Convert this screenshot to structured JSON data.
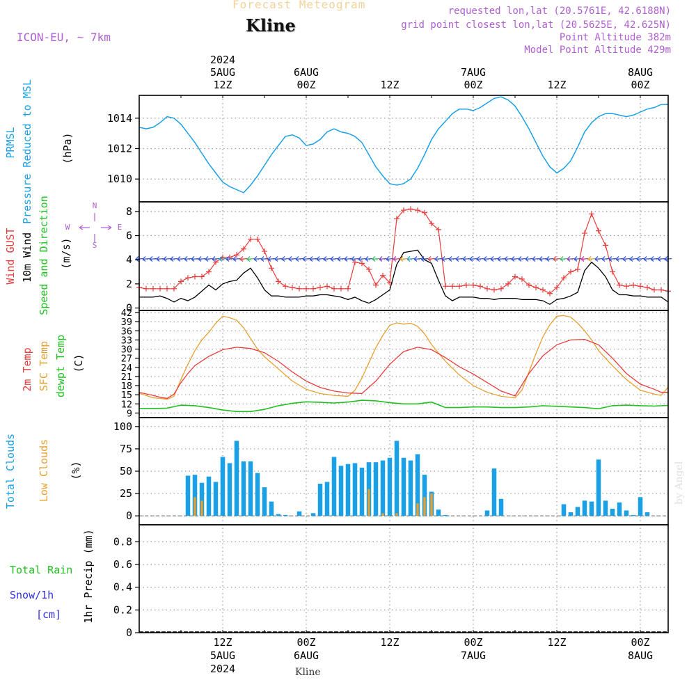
{
  "header": {
    "title": "Forecast Meteogram",
    "station": "Kline",
    "model": "ICON-EU, ~ 7km",
    "requested": "requested lon,lat (20.5761E, 42.6188N)",
    "gridpoint": "grid point closest lon,lat (20.5625E, 42.625N)",
    "point_alt": "Point Altitude 382m",
    "model_alt": "Model Point Altitude 429m",
    "signature": "by Angel",
    "footer_station": "Kline"
  },
  "colors": {
    "pressure": "#1aa0e6",
    "gust": "#e83c3c",
    "wind": "#000000",
    "temp2m": "#e83c3c",
    "sfc": "#e6a030",
    "dewpt": "#20c020",
    "clouds": "#1aa0e6",
    "lowclouds": "#e6a030",
    "rain": "#20c020",
    "snow": "#3030e0",
    "dir": "#b060d0"
  },
  "time_axis": {
    "top_year": "2024",
    "top_labels": [
      {
        "t": 12,
        "date": "5AUG",
        "hour": "12Z"
      },
      {
        "t": 24,
        "date": "6AUG",
        "hour": "00Z"
      },
      {
        "t": 36,
        "date": "",
        "hour": "12Z"
      },
      {
        "t": 48,
        "date": "7AUG",
        "hour": "00Z"
      },
      {
        "t": 60,
        "date": "",
        "hour": "12Z"
      },
      {
        "t": 72,
        "date": "8AUG",
        "hour": "00Z"
      }
    ],
    "bottom_labels": [
      {
        "t": 12,
        "hour": "12Z",
        "date": "5AUG",
        "year": "2024"
      },
      {
        "t": 24,
        "hour": "00Z",
        "date": "6AUG",
        "year": ""
      },
      {
        "t": 36,
        "hour": "12Z",
        "date": "",
        "year": ""
      },
      {
        "t": 48,
        "hour": "00Z",
        "date": "7AUG",
        "year": ""
      },
      {
        "t": 60,
        "hour": "12Z",
        "date": "",
        "year": ""
      },
      {
        "t": 72,
        "hour": "00Z",
        "date": "8AUG",
        "year": ""
      }
    ]
  },
  "panel_labels": {
    "pressure": {
      "short": "PRMSL",
      "long": "Pressure Reduced to MSL",
      "unit": "(hPa)"
    },
    "wind": {
      "gust": "Wind GUST",
      "wind10": "10m Wind",
      "speed": "Speed and Direction",
      "unit": "(m/s)",
      "compass_n": "N",
      "compass_s": "S",
      "compass_w": "W",
      "compass_e": "E"
    },
    "temp": {
      "t2m": "2m Temp",
      "sfc": "SFC Temp",
      "dew": "dewpt Temp",
      "unit": "(C)"
    },
    "clouds": {
      "total": "Total Clouds",
      "low": "Low Clouds",
      "unit": "(%)"
    },
    "precip": {
      "rain": "Total Rain",
      "snow": "Snow/1h",
      "cm": "[cm]",
      "axis": "1hr Precip (mm)"
    }
  },
  "chart_data": [
    {
      "type": "line",
      "ylabel": "Pressure Reduced to MSL",
      "ylim": [
        1008.5,
        1015.5
      ],
      "yticks": [
        1010,
        1012,
        1014
      ],
      "xlim": [
        0,
        76
      ],
      "series": [
        {
          "name": "PRMSL",
          "x": [
            0,
            1,
            2,
            3,
            4,
            5,
            6,
            7,
            8,
            9,
            10,
            11,
            12,
            13,
            14,
            15,
            16,
            17,
            18,
            19,
            20,
            21,
            22,
            23,
            24,
            25,
            26,
            27,
            28,
            29,
            30,
            31,
            32,
            33,
            34,
            35,
            36,
            37,
            38,
            39,
            40,
            41,
            42,
            43,
            44,
            45,
            46,
            47,
            48,
            49,
            50,
            51,
            52,
            53,
            54,
            55,
            56,
            57,
            58,
            59,
            60,
            61,
            62,
            63,
            64,
            65,
            66,
            67,
            68,
            69,
            70,
            71,
            72,
            73,
            74,
            75,
            76
          ],
          "values": [
            1013.4,
            1013.3,
            1013.4,
            1013.7,
            1014.1,
            1014.0,
            1013.6,
            1013.0,
            1012.4,
            1011.7,
            1011.0,
            1010.4,
            1009.8,
            1009.5,
            1009.3,
            1009.1,
            1009.6,
            1010.2,
            1010.9,
            1011.6,
            1012.2,
            1012.8,
            1012.9,
            1012.7,
            1012.2,
            1012.3,
            1012.6,
            1013.1,
            1013.3,
            1013.1,
            1013.0,
            1012.8,
            1012.4,
            1011.6,
            1010.8,
            1010.2,
            1009.7,
            1009.6,
            1009.7,
            1010.0,
            1010.7,
            1011.6,
            1012.6,
            1013.3,
            1013.8,
            1014.3,
            1014.6,
            1014.6,
            1014.5,
            1014.7,
            1015.0,
            1015.3,
            1015.4,
            1015.2,
            1014.8,
            1014.1,
            1013.3,
            1012.4,
            1011.5,
            1010.8,
            1010.4,
            1010.7,
            1011.2,
            1012.1,
            1013.1,
            1013.7,
            1014.1,
            1014.3,
            1014.3,
            1014.2,
            1014.1,
            1014.2,
            1014.4,
            1014.6,
            1014.7,
            1014.9,
            1014.9
          ]
        }
      ]
    },
    {
      "type": "line",
      "ylabel": "(m/s)",
      "ylim": [
        -0.2,
        8.8
      ],
      "yticks": [
        0,
        2,
        4,
        6,
        8
      ],
      "xlim": [
        0,
        76
      ],
      "series": [
        {
          "name": "Wind GUST",
          "x": [
            0,
            1,
            2,
            3,
            4,
            5,
            6,
            7,
            8,
            9,
            10,
            11,
            12,
            13,
            14,
            15,
            16,
            17,
            18,
            19,
            20,
            21,
            22,
            23,
            24,
            25,
            26,
            27,
            28,
            29,
            30,
            31,
            32,
            33,
            34,
            35,
            36,
            37,
            38,
            39,
            40,
            41,
            42,
            43,
            44,
            45,
            46,
            47,
            48,
            49,
            50,
            51,
            52,
            53,
            54,
            55,
            56,
            57,
            58,
            59,
            60,
            61,
            62,
            63,
            64,
            65,
            66,
            67,
            68,
            69,
            70,
            71,
            72,
            73,
            74,
            75,
            76
          ],
          "values": [
            1.7,
            1.6,
            1.6,
            1.6,
            1.6,
            1.6,
            2.2,
            2.5,
            2.6,
            2.6,
            3.0,
            3.8,
            4.2,
            4.2,
            4.4,
            4.9,
            5.7,
            5.7,
            4.7,
            3.3,
            2.2,
            1.8,
            1.7,
            1.6,
            1.6,
            1.6,
            1.7,
            1.8,
            1.6,
            1.6,
            1.6,
            3.8,
            3.7,
            3.2,
            1.9,
            2.7,
            2.1,
            7.4,
            8.1,
            8.2,
            8.1,
            7.9,
            7.0,
            6.5,
            1.8,
            1.8,
            1.8,
            1.9,
            1.9,
            1.8,
            1.6,
            1.5,
            1.6,
            2.0,
            2.6,
            2.4,
            1.9,
            1.7,
            1.5,
            1.2,
            1.7,
            2.5,
            3.0,
            3.2,
            6.2,
            7.8,
            6.4,
            5.2,
            3.0,
            1.9,
            1.8,
            1.9,
            1.8,
            1.7,
            1.5,
            1.5,
            1.4
          ]
        },
        {
          "name": "10m Wind",
          "x": [
            0,
            1,
            2,
            3,
            4,
            5,
            6,
            7,
            8,
            9,
            10,
            11,
            12,
            13,
            14,
            15,
            16,
            17,
            18,
            19,
            20,
            21,
            22,
            23,
            24,
            25,
            26,
            27,
            28,
            29,
            30,
            31,
            32,
            33,
            34,
            35,
            36,
            37,
            38,
            39,
            40,
            41,
            42,
            43,
            44,
            45,
            46,
            47,
            48,
            49,
            50,
            51,
            52,
            53,
            54,
            55,
            56,
            57,
            58,
            59,
            60,
            61,
            62,
            63,
            64,
            65,
            66,
            67,
            68,
            69,
            70,
            71,
            72,
            73,
            74,
            75,
            76
          ],
          "values": [
            0.9,
            0.9,
            0.9,
            1.0,
            0.8,
            0.5,
            0.8,
            0.6,
            0.9,
            1.4,
            1.9,
            1.5,
            2.0,
            2.2,
            2.3,
            2.9,
            3.3,
            2.5,
            1.5,
            1.0,
            1.0,
            0.9,
            0.9,
            0.9,
            1.0,
            1.0,
            1.1,
            1.1,
            1.0,
            0.9,
            0.7,
            0.9,
            0.6,
            0.4,
            0.7,
            1.1,
            1.5,
            3.6,
            4.6,
            4.7,
            4.8,
            4.0,
            3.7,
            2.3,
            1.0,
            0.6,
            0.9,
            0.9,
            0.9,
            0.8,
            0.8,
            0.7,
            0.8,
            0.8,
            0.8,
            0.7,
            0.7,
            0.7,
            0.6,
            0.3,
            0.7,
            0.8,
            1.0,
            1.3,
            3.1,
            3.8,
            3.3,
            2.6,
            1.5,
            1.1,
            1.1,
            1.0,
            1.0,
            0.9,
            0.9,
            0.9,
            0.5
          ]
        }
      ]
    },
    {
      "type": "line",
      "ylabel": "(C)",
      "ylim": [
        7.5,
        42.7
      ],
      "yticks": [
        9,
        12,
        15,
        18,
        21,
        24,
        27,
        30,
        33,
        36,
        39,
        42
      ],
      "xlim": [
        0,
        76
      ],
      "series": [
        {
          "name": "2m Temp",
          "x": [
            0,
            2,
            3,
            4,
            5,
            6,
            7,
            8,
            10,
            12,
            14,
            16,
            18,
            20,
            22,
            24,
            26,
            28,
            30,
            32,
            34,
            36,
            38,
            40,
            42,
            44,
            46,
            48,
            50,
            52,
            54,
            56,
            58,
            60,
            62,
            64,
            66,
            68,
            70,
            72,
            74,
            75,
            76
          ],
          "values": [
            15.8,
            14.8,
            14.2,
            13.8,
            15.2,
            19.0,
            22.0,
            24.6,
            27.6,
            29.8,
            30.6,
            30.2,
            28.8,
            26.0,
            22.5,
            19.5,
            17.4,
            16.2,
            15.6,
            15.4,
            19.5,
            25.0,
            29.2,
            30.6,
            29.8,
            27.2,
            24.2,
            21.8,
            19.0,
            16.2,
            14.6,
            22.0,
            27.8,
            31.4,
            33.0,
            33.2,
            31.4,
            27.0,
            22.0,
            18.5,
            16.8,
            15.8,
            15.8
          ]
        },
        {
          "name": "SFC Temp",
          "x": [
            0,
            2,
            3,
            4,
            5,
            6,
            7,
            8,
            9,
            10,
            11,
            12,
            13,
            14,
            15,
            16,
            17,
            18,
            20,
            22,
            24,
            26,
            28,
            30,
            31,
            32,
            33,
            34,
            35,
            36,
            37,
            38,
            39,
            40,
            41,
            42,
            44,
            46,
            48,
            50,
            52,
            54,
            55,
            56,
            57,
            58,
            59,
            60,
            61,
            62,
            63,
            64,
            65,
            66,
            68,
            70,
            72,
            74,
            75,
            76
          ],
          "values": [
            15.5,
            14.0,
            13.8,
            13.5,
            14.5,
            20.0,
            25.0,
            29.5,
            33.0,
            35.5,
            38.5,
            40.8,
            40.3,
            39.5,
            37.0,
            33.5,
            30.0,
            27.5,
            23.5,
            19.5,
            16.8,
            15.4,
            14.8,
            14.5,
            16.5,
            20.5,
            25.5,
            30.5,
            34.5,
            37.8,
            38.6,
            38.2,
            38.5,
            37.5,
            35.0,
            31.5,
            26.0,
            21.5,
            18.0,
            15.8,
            14.5,
            14.0,
            16.5,
            22.5,
            28.5,
            34.0,
            38.0,
            40.8,
            41.0,
            40.5,
            38.5,
            36.0,
            33.0,
            29.5,
            24.5,
            20.0,
            16.5,
            15.2,
            14.8,
            17.5
          ]
        },
        {
          "name": "dewpt Temp",
          "x": [
            0,
            2,
            4,
            6,
            8,
            10,
            12,
            14,
            16,
            18,
            20,
            22,
            24,
            26,
            28,
            30,
            32,
            34,
            36,
            38,
            40,
            42,
            44,
            46,
            48,
            50,
            52,
            54,
            56,
            58,
            60,
            62,
            64,
            66,
            68,
            70,
            72,
            74,
            76
          ],
          "values": [
            10.5,
            10.5,
            10.6,
            11.6,
            11.4,
            10.8,
            10.0,
            9.5,
            9.5,
            10.2,
            11.4,
            12.2,
            12.7,
            12.5,
            12.3,
            12.6,
            13.2,
            13.0,
            12.4,
            12.0,
            12.0,
            12.6,
            10.8,
            10.8,
            11.0,
            11.0,
            10.8,
            10.8,
            11.0,
            11.4,
            11.2,
            11.0,
            10.8,
            10.4,
            11.4,
            11.6,
            11.4,
            11.3,
            11.5
          ]
        }
      ]
    },
    {
      "type": "bar",
      "ylabel": "(%)",
      "ylim": [
        -10,
        110
      ],
      "yticks": [
        0,
        25,
        50,
        75,
        100
      ],
      "xlim": [
        0,
        76
      ],
      "series": [
        {
          "name": "Total Clouds",
          "x": [
            7,
            8,
            9,
            10,
            11,
            12,
            13,
            14,
            15,
            16,
            17,
            18,
            19,
            20,
            21,
            23,
            25,
            26,
            27,
            28,
            29,
            30,
            31,
            32,
            33,
            34,
            35,
            36,
            37,
            38,
            39,
            40,
            41,
            42,
            43,
            44,
            50,
            51,
            52,
            61,
            62,
            63,
            64,
            65,
            66,
            67,
            68,
            69,
            70,
            71,
            72,
            73
          ],
          "values": [
            45,
            46,
            37,
            44,
            38,
            66,
            59,
            84,
            61,
            61,
            48,
            32,
            16,
            2,
            1,
            5,
            3,
            36,
            38,
            66,
            56,
            58,
            59,
            54,
            60,
            60,
            62,
            65,
            84,
            65,
            62,
            69,
            46,
            27,
            7,
            1,
            6,
            53,
            19,
            13,
            4,
            10,
            17,
            16,
            63,
            17,
            8,
            15,
            6,
            1,
            21,
            4
          ]
        },
        {
          "name": "Low Clouds",
          "x": [
            8,
            9,
            33,
            35,
            37,
            40,
            41,
            42
          ],
          "values": [
            21,
            17,
            30,
            3,
            3,
            14,
            21,
            25
          ]
        }
      ]
    },
    {
      "type": "line",
      "ylabel": "1hr Precip (mm)",
      "ylim": [
        0,
        0.95
      ],
      "yticks": [
        0,
        0.2,
        0.4,
        0.6,
        0.8
      ],
      "xlim": [
        0,
        76
      ],
      "series": [
        {
          "name": "Total Rain",
          "x": [
            0,
            76
          ],
          "values": [
            0,
            0
          ]
        },
        {
          "name": "Snow/1h",
          "x": [
            0,
            76
          ],
          "values": [
            0,
            0
          ]
        }
      ]
    }
  ]
}
